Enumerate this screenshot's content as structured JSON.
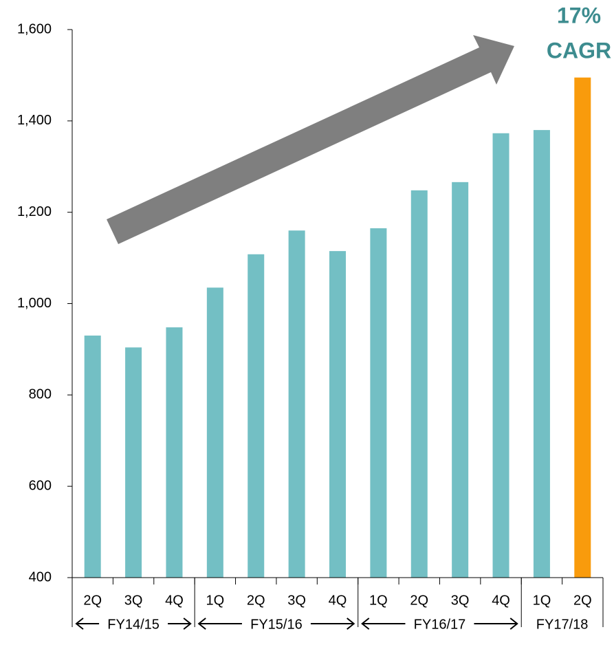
{
  "chart_data": {
    "type": "bar",
    "categories": [
      "2Q",
      "3Q",
      "4Q",
      "1Q",
      "2Q",
      "3Q",
      "4Q",
      "1Q",
      "2Q",
      "3Q",
      "4Q",
      "1Q",
      "2Q"
    ],
    "category_groups": [
      {
        "label": "FY14/15",
        "size": 3
      },
      {
        "label": "FY15/16",
        "size": 4
      },
      {
        "label": "FY16/17",
        "size": 4
      },
      {
        "label": "FY17/18",
        "size": 2
      }
    ],
    "values": [
      930,
      904,
      948,
      1035,
      1108,
      1160,
      1115,
      1165,
      1248,
      1266,
      1373,
      1380,
      1495
    ],
    "colors": [
      "#73bfc4",
      "#73bfc4",
      "#73bfc4",
      "#73bfc4",
      "#73bfc4",
      "#73bfc4",
      "#73bfc4",
      "#73bfc4",
      "#73bfc4",
      "#73bfc4",
      "#73bfc4",
      "#73bfc4",
      "#f99b0c"
    ],
    "ylim": [
      400,
      1600
    ],
    "yticks": [
      400,
      600,
      800,
      {
        "value": 1000,
        "label": "1,000"
      },
      {
        "value": 1200,
        "label": "1,200"
      },
      {
        "value": 1400,
        "label": "1,400"
      },
      {
        "value": 1600,
        "label": "1,600"
      }
    ],
    "annotation": [
      "17%",
      "CAGR"
    ]
  }
}
